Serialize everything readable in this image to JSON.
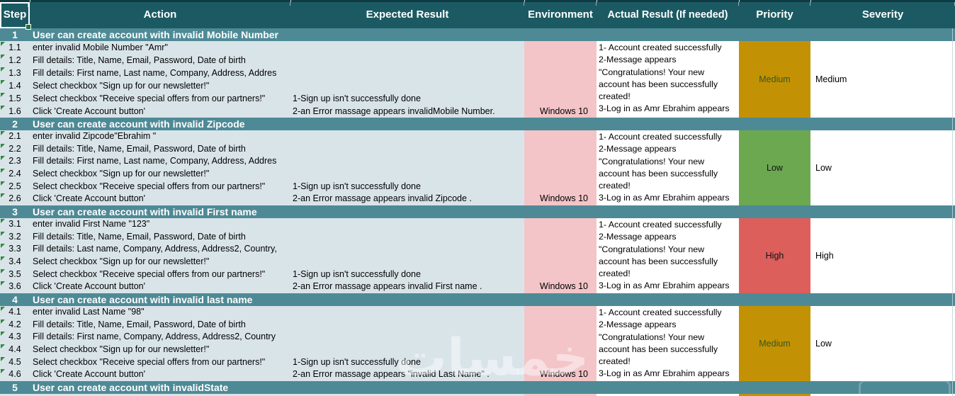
{
  "colors": {
    "top_strip": "#0E3B42",
    "header_bg": "#1B5A63",
    "band_bg": "#4E8A96",
    "row_bg": "#D9E4E9",
    "env_bg": "#F3C5C8",
    "priority_gold": "#C29204",
    "priority_green": "#6CA850",
    "priority_red": "#DC5F5C"
  },
  "watermark": "خمسات",
  "table": {
    "columns": [
      {
        "key": "step",
        "label": "Step"
      },
      {
        "key": "action",
        "label": "Action"
      },
      {
        "key": "expected",
        "label": "Expected Result"
      },
      {
        "key": "environment",
        "label": "Environment"
      },
      {
        "key": "actual",
        "label": "Actual Result (If needed)"
      },
      {
        "key": "priority",
        "label": "Priority"
      },
      {
        "key": "severity",
        "label": "Severity"
      }
    ],
    "sections": [
      {
        "number": "1",
        "title": "User can create account with invalid Mobile Number",
        "steps": [
          {
            "id": "1.1",
            "action": "enter invalid Mobile Number \"Amr\""
          },
          {
            "id": "1.2",
            "action": "Fill details: Title, Name, Email, Password, Date of birth"
          },
          {
            "id": "1.3",
            "action": "Fill details: First name, Last name, Company, Address, Addres"
          },
          {
            "id": "1.4",
            "action": "Select checkbox \"Sign up for our newsletter!\""
          },
          {
            "id": "1.5",
            "action": "Select checkbox \"Receive special offers from our partners!\""
          },
          {
            "id": "1.6",
            "action": "Click 'Create Account button'"
          }
        ],
        "expected_result": [
          "1-Sign up isn't successfully done",
          "2-an Error massage appears invalidMobile Number."
        ],
        "environment": "Windows 10",
        "actual_result": [
          "1- Account created successfully",
          "2-Message appears",
          "\"Congratulations! Your new",
          "account has been successfully",
          "created!",
          "3-Log in as Amr Ebrahim appears"
        ],
        "priority": {
          "label": "Medium",
          "color": "#C29204",
          "text_color": "#375623"
        },
        "severity": "Medium"
      },
      {
        "number": "2",
        "title": "User can create account with invalid Zipcode",
        "steps": [
          {
            "id": "2.1",
            "action": "enter invalid Zipcode\"Ebrahim \""
          },
          {
            "id": "2.2",
            "action": "Fill details: Title, Name, Email, Password, Date of birth"
          },
          {
            "id": "2.3",
            "action": "Fill details: First name, Last name, Company, Address, Addres"
          },
          {
            "id": "2.4",
            "action": "Select checkbox \"Sign up for our newsletter!\""
          },
          {
            "id": "2.5",
            "action": "Select checkbox \"Receive special offers from our partners!\""
          },
          {
            "id": "2.6",
            "action": "Click 'Create Account button'"
          }
        ],
        "expected_result": [
          "1-Sign up isn't successfully done",
          "2-an Error massage appears invalid  Zipcode ."
        ],
        "environment": "Windows 10",
        "actual_result": [
          "1- Account created successfully",
          "2-Message appears",
          "\"Congratulations! Your new",
          "account has been successfully",
          "created!",
          "3-Log in as Amr Ebrahim appears"
        ],
        "priority": {
          "label": "Low",
          "color": "#6CA850",
          "text_color": "#111111"
        },
        "severity": "Low"
      },
      {
        "number": "3",
        "title": "User can create account with invalid First name",
        "steps": [
          {
            "id": "3.1",
            "action": "enter invalid First Name \"123\""
          },
          {
            "id": "3.2",
            "action": "Fill details: Title, Name, Email, Password, Date of birth"
          },
          {
            "id": "3.3",
            "action": "Fill details: Last name, Company, Address, Address2, Country,"
          },
          {
            "id": "3.4",
            "action": "Select checkbox \"Sign up for our newsletter!\""
          },
          {
            "id": "3.5",
            "action": "Select checkbox \"Receive special offers from our partners!\""
          },
          {
            "id": "3.6",
            "action": "Click 'Create Account button'"
          }
        ],
        "expected_result": [
          "1-Sign up isn't successfully done",
          "2-an Error massage appears invalid First name ."
        ],
        "environment": "Windows 10",
        "actual_result": [
          "1- Account created successfully",
          "2-Message appears",
          "\"Congratulations! Your new",
          "account has been successfully",
          "created!",
          "3-Log in as Amr Ebrahim appears"
        ],
        "priority": {
          "label": "High",
          "color": "#DC5F5C",
          "text_color": "#111111"
        },
        "severity": "High"
      },
      {
        "number": "4",
        "title": "User can create account with invalid last name",
        "steps": [
          {
            "id": "4.1",
            "action": "enter invalid Last Name \"98\""
          },
          {
            "id": "4.2",
            "action": "Fill details: Title, Name, Email, Password, Date of birth"
          },
          {
            "id": "4.3",
            "action": "Fill details: First name,  Company, Address, Address2, Country"
          },
          {
            "id": "4.4",
            "action": "Select checkbox \"Sign up for our newsletter!\""
          },
          {
            "id": "4.5",
            "action": "Select checkbox \"Receive special offers from our partners!\""
          },
          {
            "id": "4.6",
            "action": "Click 'Create Account button'"
          }
        ],
        "expected_result": [
          "1-Sign up isn't successfully done",
          "2-an Error massage appears \"invalid Last Name\" ."
        ],
        "environment": "Windows 10",
        "actual_result": [
          "1- Account created successfully",
          "2-Message appears",
          "\"Congratulations! Your new",
          "account has been successfully",
          "created!",
          "3-Log in as Amr Ebrahim appears"
        ],
        "priority": {
          "label": "Medium",
          "color": "#C29204",
          "text_color": "#375623"
        },
        "severity": "Low"
      },
      {
        "number": "5",
        "title": "User can create account with invalidState",
        "steps": [],
        "expected_result": [],
        "environment": "",
        "actual_result": [],
        "priority": {
          "label": "",
          "color": "#C29204",
          "text_color": "#375623"
        },
        "severity": ""
      }
    ]
  }
}
